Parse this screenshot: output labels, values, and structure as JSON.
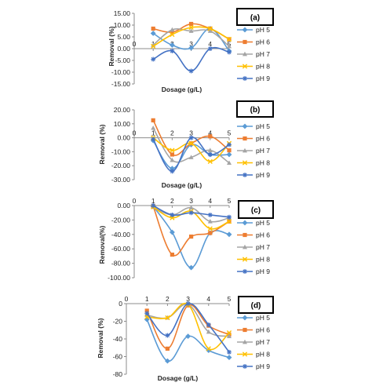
{
  "figure": {
    "colors": {
      "pH 5": "#5b9bd5",
      "pH 6": "#ed7d31",
      "pH 7": "#a5a5a5",
      "pH 8": "#ffc000",
      "pH 9": "#4472c4"
    },
    "markers": {
      "pH 5": "diamond",
      "pH 6": "square",
      "pH 7": "triangle",
      "pH 8": "x",
      "pH 9": "star"
    }
  },
  "chart_data": [
    {
      "type": "line",
      "panel_label": "(a)",
      "xlabel": "Dosage (g/L)",
      "ylabel": "Removal (%)",
      "x_ticks": [
        "0",
        "1",
        "2",
        "3",
        "4",
        "5"
      ],
      "y_ticks": [
        "15.00",
        "10.00",
        "5.00",
        "0.00",
        "-5.00",
        "-10.00",
        "-15.00"
      ],
      "xlim": [
        0,
        5
      ],
      "ylim": [
        -15,
        15
      ],
      "x": [
        1,
        2,
        3,
        4,
        5
      ],
      "legend_position": "right",
      "series": [
        {
          "name": "pH 5",
          "values": [
            6.5,
            1.5,
            0.3,
            8.5,
            -1.0
          ]
        },
        {
          "name": "pH 6",
          "values": [
            8.5,
            7.0,
            10.5,
            8.5,
            4.0
          ]
        },
        {
          "name": "pH 7",
          "values": [
            1.5,
            8.0,
            7.5,
            7.5,
            1.0
          ]
        },
        {
          "name": "pH 8",
          "values": [
            1.0,
            6.0,
            9.0,
            8.5,
            4.0
          ]
        },
        {
          "name": "pH 9",
          "values": [
            -4.5,
            -1.0,
            -9.5,
            0.0,
            -1.5
          ]
        }
      ]
    },
    {
      "type": "line",
      "panel_label": "(b)",
      "xlabel": "Dosage (g/L)",
      "ylabel": "Removal (%)",
      "x_ticks": [
        "0",
        "1",
        "2",
        "3",
        "4",
        "5"
      ],
      "y_ticks": [
        "20.00",
        "10.00",
        "0.00",
        "-10.00",
        "-20.00",
        "-30.00"
      ],
      "xlim": [
        0,
        5
      ],
      "ylim": [
        -30,
        20
      ],
      "x": [
        1,
        2,
        3,
        4,
        5
      ],
      "legend_position": "right",
      "series": [
        {
          "name": "pH 5",
          "values": [
            -2.0,
            -22.0,
            -5.0,
            -12.0,
            -12.0
          ]
        },
        {
          "name": "pH 6",
          "values": [
            12.5,
            -12.0,
            -4.0,
            1.0,
            -9.0
          ]
        },
        {
          "name": "pH 7",
          "values": [
            7.0,
            -16.0,
            -14.0,
            -9.0,
            -18.0
          ]
        },
        {
          "name": "pH 8",
          "values": [
            0.0,
            -9.0,
            -4.0,
            -17.0,
            -4.0
          ]
        },
        {
          "name": "pH 9",
          "values": [
            -1.0,
            -24.0,
            0.0,
            -12.0,
            -5.0
          ]
        }
      ]
    },
    {
      "type": "line",
      "panel_label": "(c)",
      "xlabel": "",
      "ylabel": "Removal(%)",
      "x_ticks": [
        "0",
        "1",
        "2",
        "3",
        "4",
        "5"
      ],
      "y_ticks": [
        "0.00",
        "-20.00",
        "-40.00",
        "-60.00",
        "-80.00",
        "-100.00"
      ],
      "xlim": [
        0,
        5
      ],
      "ylim": [
        -100,
        0
      ],
      "x": [
        1,
        2,
        3,
        4,
        5
      ],
      "legend_position": "right",
      "series": [
        {
          "name": "pH 5",
          "values": [
            -1.0,
            -37.0,
            -86.0,
            -38.0,
            -40.0
          ]
        },
        {
          "name": "pH 6",
          "values": [
            -1.0,
            -68.0,
            -43.0,
            -38.0,
            -22.0
          ]
        },
        {
          "name": "pH 7",
          "values": [
            -2.0,
            -13.0,
            -3.0,
            -22.0,
            -17.0
          ]
        },
        {
          "name": "pH 8",
          "values": [
            -2.0,
            -17.0,
            -8.0,
            -32.0,
            -22.0
          ]
        },
        {
          "name": "pH 9",
          "values": [
            0.0,
            -13.0,
            -10.0,
            -13.0,
            -16.0
          ]
        }
      ]
    },
    {
      "type": "line",
      "panel_label": "(d)",
      "xlabel": "Dosage (g/L)",
      "ylabel": "Removal (%)",
      "x_ticks": [
        "0",
        "1",
        "2",
        "3",
        "4",
        "5"
      ],
      "y_ticks": [
        "0",
        "-20",
        "-40",
        "-60",
        "-80"
      ],
      "xlim": [
        0,
        5
      ],
      "ylim": [
        -80,
        0
      ],
      "x": [
        1,
        2,
        3,
        4,
        5
      ],
      "legend_position": "right",
      "series": [
        {
          "name": "pH 5",
          "values": [
            -18.0,
            -65.0,
            -37.0,
            -53.0,
            -61.0
          ]
        },
        {
          "name": "pH 6",
          "values": [
            -8.0,
            -51.0,
            -2.0,
            -25.0,
            -35.0
          ]
        },
        {
          "name": "pH 7",
          "values": [
            -13.0,
            -16.0,
            -1.0,
            -32.0,
            -37.0
          ]
        },
        {
          "name": "pH 8",
          "values": [
            -15.0,
            -16.0,
            -1.0,
            -51.0,
            -33.0
          ]
        },
        {
          "name": "pH 9",
          "values": [
            -11.0,
            -36.0,
            0.0,
            -24.0,
            -55.0
          ]
        }
      ]
    }
  ]
}
